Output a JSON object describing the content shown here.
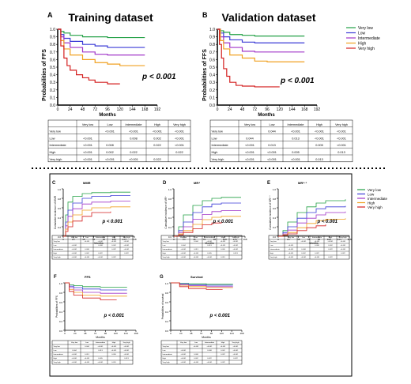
{
  "colors": {
    "very_low": "#22a045",
    "low": "#3b3bd6",
    "intermediate": "#a035c8",
    "high": "#f0a020",
    "very_high": "#d42020",
    "border": "#000000"
  },
  "legend_series": [
    "Very low",
    "Low",
    "Intermediate",
    "High",
    "Very high"
  ],
  "top": {
    "panels": [
      {
        "letter": "A",
        "title": "Training dataset",
        "pvalue": "p < 0.001",
        "xlabel": "Months",
        "ylabel": "Probabilities of FFS"
      },
      {
        "letter": "B",
        "title": "Validation dataset",
        "pvalue": "p < 0.001",
        "xlabel": "Months",
        "ylabel": "Probabilities of FFS"
      }
    ],
    "yticks": [
      "0.0",
      "0.1",
      "0.2",
      "0.3",
      "0.4",
      "0.5",
      "0.6",
      "0.7",
      "0.8",
      "0.9",
      "1.0"
    ],
    "xticks": [
      "0",
      "24",
      "48",
      "72",
      "96",
      "120",
      "144",
      "168",
      "192"
    ]
  },
  "bottom": {
    "panels": [
      {
        "letter": "C",
        "title": "MMR",
        "pvalue": "p < 0.001",
        "ylabel": "Cumulative incidence of MMR"
      },
      {
        "letter": "D",
        "title": "MR⁴",
        "pvalue": "p < 0.001",
        "ylabel": "Cumulative incidence of MR⁴"
      },
      {
        "letter": "E",
        "title": "MR⁴·⁵",
        "pvalue": "p < 0.001",
        "ylabel": "Cumulative incidence of MR⁴·⁵"
      },
      {
        "letter": "F",
        "title": "FFS",
        "pvalue": "p < 0.001",
        "ylabel": "Probabilities of FFS"
      },
      {
        "letter": "G",
        "title": "Survival",
        "pvalue": "p < 0.001",
        "ylabel": "Probabilities of survival"
      }
    ],
    "xlabel_months": "Months"
  },
  "tables": {
    "header": [
      "",
      "Very low",
      "Low",
      "Intermediate",
      "High",
      "Very high"
    ],
    "A_rows": [
      [
        "Very low",
        "",
        "<0.001",
        "<0.001",
        "<0.001",
        "<0.001"
      ],
      [
        "Low",
        "<0.001",
        "",
        "0.008",
        "0.002",
        "<0.001"
      ],
      [
        "Intermediate",
        "<0.001",
        "0.008",
        "",
        "0.022",
        "<0.001"
      ],
      [
        "High",
        "<0.001",
        "0.002",
        "0.022",
        "",
        "0.022"
      ],
      [
        "Very high",
        "<0.001",
        "<0.001",
        "<0.001",
        "0.022",
        ""
      ]
    ],
    "B_rows": [
      [
        "Very low",
        "",
        "0.044",
        "<0.001",
        "<0.001",
        "<0.001"
      ],
      [
        "Low",
        "0.044",
        "",
        "0.013",
        "<0.001",
        "<0.001"
      ],
      [
        "Intermediate",
        "<0.001",
        "0.013",
        "",
        "0.005",
        "<0.001"
      ],
      [
        "High",
        "<0.001",
        "<0.001",
        "0.005",
        "",
        "0.013"
      ],
      [
        "Very high",
        "<0.001",
        "<0.001",
        "<0.001",
        "0.013",
        ""
      ]
    ]
  },
  "chart_data": [
    {
      "type": "line",
      "panel": "A",
      "title": "Training dataset",
      "xlabel": "Months",
      "ylabel": "Probabilities of FFS",
      "xlim": [
        0,
        192
      ],
      "ylim": [
        0,
        1.0
      ],
      "series": [
        {
          "name": "Very low",
          "x": [
            0,
            6,
            12,
            24,
            48,
            72,
            96,
            120,
            168
          ],
          "y": [
            1.0,
            0.97,
            0.95,
            0.92,
            0.9,
            0.9,
            0.89,
            0.89,
            0.89
          ]
        },
        {
          "name": "Low",
          "x": [
            0,
            6,
            12,
            24,
            48,
            72,
            96,
            120,
            168
          ],
          "y": [
            1.0,
            0.93,
            0.88,
            0.84,
            0.8,
            0.78,
            0.76,
            0.76,
            0.76
          ]
        },
        {
          "name": "Intermediate",
          "x": [
            0,
            6,
            12,
            24,
            48,
            72,
            96,
            120,
            168
          ],
          "y": [
            1.0,
            0.9,
            0.82,
            0.76,
            0.7,
            0.67,
            0.66,
            0.66,
            0.66
          ]
        },
        {
          "name": "High",
          "x": [
            0,
            6,
            12,
            24,
            48,
            72,
            96,
            120,
            168
          ],
          "y": [
            1.0,
            0.85,
            0.74,
            0.66,
            0.6,
            0.56,
            0.54,
            0.52,
            0.52
          ]
        },
        {
          "name": "Very high",
          "x": [
            0,
            6,
            12,
            18,
            24,
            36,
            48,
            60,
            72,
            96,
            120
          ],
          "y": [
            1.0,
            0.78,
            0.62,
            0.52,
            0.46,
            0.4,
            0.36,
            0.33,
            0.3,
            0.28,
            0.28
          ]
        }
      ]
    },
    {
      "type": "line",
      "panel": "B",
      "title": "Validation dataset",
      "xlabel": "Months",
      "ylabel": "Probabilities of FFS",
      "xlim": [
        0,
        192
      ],
      "ylim": [
        0,
        1.0
      ],
      "series": [
        {
          "name": "Very low",
          "x": [
            0,
            6,
            12,
            24,
            48,
            72,
            96,
            120,
            168
          ],
          "y": [
            1.0,
            0.98,
            0.96,
            0.93,
            0.92,
            0.91,
            0.91,
            0.91,
            0.91
          ]
        },
        {
          "name": "Low",
          "x": [
            0,
            6,
            12,
            24,
            48,
            72,
            96,
            120,
            168
          ],
          "y": [
            1.0,
            0.95,
            0.9,
            0.86,
            0.83,
            0.82,
            0.82,
            0.82,
            0.82
          ]
        },
        {
          "name": "Intermediate",
          "x": [
            0,
            6,
            12,
            24,
            48,
            72,
            96,
            120,
            168
          ],
          "y": [
            1.0,
            0.9,
            0.82,
            0.76,
            0.71,
            0.7,
            0.7,
            0.7,
            0.7
          ]
        },
        {
          "name": "High",
          "x": [
            0,
            6,
            12,
            24,
            48,
            72,
            96,
            120,
            168
          ],
          "y": [
            1.0,
            0.85,
            0.74,
            0.66,
            0.62,
            0.58,
            0.57,
            0.57,
            0.57
          ]
        },
        {
          "name": "Very high",
          "x": [
            0,
            4,
            8,
            12,
            18,
            24,
            36,
            48,
            72,
            96,
            120
          ],
          "y": [
            1.0,
            0.8,
            0.62,
            0.48,
            0.38,
            0.3,
            0.26,
            0.25,
            0.24,
            0.24,
            0.24
          ]
        }
      ]
    },
    {
      "type": "line",
      "panel": "C",
      "title": "MMR",
      "ylim": [
        0,
        1.0
      ],
      "xlim": [
        0,
        180
      ],
      "series": [
        {
          "name": "Very low",
          "x": [
            0,
            6,
            12,
            24,
            48,
            72,
            120,
            170
          ],
          "y": [
            0,
            0.45,
            0.72,
            0.84,
            0.9,
            0.92,
            0.93,
            0.93
          ]
        },
        {
          "name": "Low",
          "x": [
            0,
            6,
            12,
            24,
            48,
            72,
            120,
            170
          ],
          "y": [
            0,
            0.3,
            0.55,
            0.7,
            0.8,
            0.84,
            0.86,
            0.86
          ]
        },
        {
          "name": "Intermediate",
          "x": [
            0,
            6,
            12,
            24,
            48,
            72,
            120,
            170
          ],
          "y": [
            0,
            0.22,
            0.42,
            0.58,
            0.68,
            0.72,
            0.74,
            0.74
          ]
        },
        {
          "name": "High",
          "x": [
            0,
            6,
            12,
            24,
            48,
            72,
            120,
            170
          ],
          "y": [
            0,
            0.15,
            0.3,
            0.45,
            0.55,
            0.6,
            0.62,
            0.62
          ]
        },
        {
          "name": "Very high",
          "x": [
            0,
            6,
            12,
            24,
            48,
            72,
            120
          ],
          "y": [
            0,
            0.1,
            0.2,
            0.32,
            0.42,
            0.5,
            0.52
          ]
        }
      ]
    },
    {
      "type": "line",
      "panel": "D",
      "title": "MR⁴",
      "ylim": [
        0,
        1.0
      ],
      "xlim": [
        0,
        180
      ],
      "series": [
        {
          "name": "Very low",
          "x": [
            0,
            12,
            24,
            48,
            72,
            96,
            120,
            170
          ],
          "y": [
            0,
            0.2,
            0.45,
            0.65,
            0.75,
            0.8,
            0.82,
            0.82
          ]
        },
        {
          "name": "Low",
          "x": [
            0,
            12,
            24,
            48,
            72,
            96,
            120,
            170
          ],
          "y": [
            0,
            0.12,
            0.3,
            0.5,
            0.62,
            0.68,
            0.7,
            0.7
          ]
        },
        {
          "name": "Intermediate",
          "x": [
            0,
            12,
            24,
            48,
            72,
            96,
            120,
            170
          ],
          "y": [
            0,
            0.08,
            0.2,
            0.36,
            0.46,
            0.52,
            0.54,
            0.54
          ]
        },
        {
          "name": "High",
          "x": [
            0,
            12,
            24,
            48,
            72,
            96,
            120,
            170
          ],
          "y": [
            0,
            0.05,
            0.12,
            0.25,
            0.35,
            0.4,
            0.42,
            0.42
          ]
        },
        {
          "name": "Very high",
          "x": [
            0,
            12,
            24,
            48,
            72,
            96,
            120
          ],
          "y": [
            0,
            0.03,
            0.08,
            0.16,
            0.24,
            0.28,
            0.3
          ]
        }
      ]
    },
    {
      "type": "line",
      "panel": "E",
      "title": "MR⁴·⁵",
      "ylim": [
        0,
        1.0
      ],
      "xlim": [
        0,
        180
      ],
      "series": [
        {
          "name": "Very low",
          "x": [
            0,
            12,
            24,
            48,
            72,
            96,
            120,
            170
          ],
          "y": [
            0,
            0.12,
            0.3,
            0.5,
            0.62,
            0.7,
            0.75,
            0.78
          ]
        },
        {
          "name": "Low",
          "x": [
            0,
            12,
            24,
            48,
            72,
            96,
            120,
            170
          ],
          "y": [
            0,
            0.08,
            0.2,
            0.38,
            0.5,
            0.58,
            0.62,
            0.64
          ]
        },
        {
          "name": "Intermediate",
          "x": [
            0,
            12,
            24,
            48,
            72,
            96,
            120,
            170
          ],
          "y": [
            0,
            0.05,
            0.13,
            0.28,
            0.38,
            0.45,
            0.5,
            0.52
          ]
        },
        {
          "name": "High",
          "x": [
            0,
            12,
            24,
            48,
            72,
            96,
            120,
            170
          ],
          "y": [
            0,
            0.03,
            0.08,
            0.18,
            0.27,
            0.33,
            0.36,
            0.38
          ]
        },
        {
          "name": "Very high",
          "x": [
            0,
            12,
            24,
            48,
            72,
            96,
            120
          ],
          "y": [
            0,
            0.02,
            0.05,
            0.12,
            0.18,
            0.22,
            0.25
          ]
        }
      ]
    },
    {
      "type": "line",
      "panel": "F",
      "title": "FFS",
      "ylabel": "Probabilities of FFS",
      "xlabel": "Months",
      "ylim": [
        0,
        1.0
      ],
      "xlim": [
        0,
        192
      ],
      "series": [
        {
          "name": "Very low",
          "x": [
            0,
            12,
            24,
            48,
            96,
            168
          ],
          "y": [
            1.0,
            0.96,
            0.94,
            0.92,
            0.91,
            0.91
          ]
        },
        {
          "name": "Low",
          "x": [
            0,
            12,
            24,
            48,
            96,
            168
          ],
          "y": [
            1.0,
            0.93,
            0.9,
            0.87,
            0.85,
            0.85
          ]
        },
        {
          "name": "Intermediate",
          "x": [
            0,
            12,
            24,
            48,
            96,
            168
          ],
          "y": [
            1.0,
            0.9,
            0.85,
            0.8,
            0.78,
            0.78
          ]
        },
        {
          "name": "High",
          "x": [
            0,
            12,
            24,
            48,
            96,
            168
          ],
          "y": [
            1.0,
            0.86,
            0.8,
            0.74,
            0.72,
            0.72
          ]
        },
        {
          "name": "Very high",
          "x": [
            0,
            12,
            24,
            48,
            96,
            140
          ],
          "y": [
            1.0,
            0.82,
            0.74,
            0.68,
            0.64,
            0.64
          ]
        }
      ]
    },
    {
      "type": "line",
      "panel": "G",
      "title": "Survival",
      "ylabel": "Probabilities of survival",
      "xlabel": "Months",
      "ylim": [
        0,
        1.0
      ],
      "xlim": [
        0,
        192
      ],
      "series": [
        {
          "name": "Very low",
          "x": [
            0,
            24,
            48,
            96,
            168
          ],
          "y": [
            1.0,
            0.99,
            0.98,
            0.97,
            0.97
          ]
        },
        {
          "name": "Low",
          "x": [
            0,
            24,
            48,
            96,
            168
          ],
          "y": [
            1.0,
            0.98,
            0.96,
            0.95,
            0.95
          ]
        },
        {
          "name": "Intermediate",
          "x": [
            0,
            24,
            48,
            96,
            168
          ],
          "y": [
            1.0,
            0.96,
            0.94,
            0.92,
            0.92
          ]
        },
        {
          "name": "High",
          "x": [
            0,
            24,
            48,
            96,
            168
          ],
          "y": [
            1.0,
            0.95,
            0.92,
            0.9,
            0.9
          ]
        },
        {
          "name": "Very high",
          "x": [
            0,
            24,
            48,
            96,
            140
          ],
          "y": [
            1.0,
            0.92,
            0.88,
            0.86,
            0.86
          ]
        }
      ]
    }
  ]
}
